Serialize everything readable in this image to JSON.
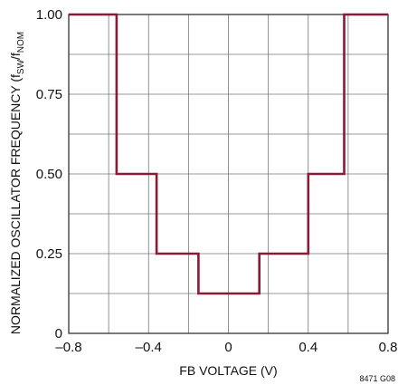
{
  "chart_data": {
    "type": "line",
    "title": "",
    "xlabel": "FB VOLTAGE (V)",
    "ylabel_main": "NORMALIZED OSCILLATOR FREQUENCY (f",
    "ylabel_sub1": "SW",
    "ylabel_mid": "/f",
    "ylabel_sub2": "NOM",
    "xlim": [
      -0.8,
      0.8
    ],
    "ylim": [
      0,
      1.0
    ],
    "grid": true,
    "x_ticks": [
      -0.8,
      -0.4,
      0,
      0.4,
      0.8
    ],
    "x_tick_labels": [
      "–0.8",
      "–0.4",
      "0",
      "0.4",
      "0.8"
    ],
    "y_ticks": [
      0,
      0.25,
      0.5,
      0.75,
      1.0
    ],
    "y_tick_labels": [
      "0",
      "0.25",
      "0.50",
      "0.75",
      "1.00"
    ],
    "x_grid": [
      -0.8,
      -0.6,
      -0.4,
      -0.2,
      0,
      0.2,
      0.4,
      0.6,
      0.8
    ],
    "y_grid": [
      0,
      0.125,
      0.25,
      0.375,
      0.5,
      0.625,
      0.75,
      0.875,
      1.0
    ],
    "line_color": "#8b1a35",
    "series": [
      {
        "points": [
          [
            -0.8,
            1.0
          ],
          [
            -0.56,
            1.0
          ],
          [
            -0.56,
            0.5
          ],
          [
            -0.36,
            0.5
          ],
          [
            -0.36,
            0.25
          ],
          [
            -0.15,
            0.25
          ],
          [
            -0.15,
            0.125
          ],
          [
            0.155,
            0.125
          ],
          [
            0.155,
            0.25
          ],
          [
            0.4,
            0.25
          ],
          [
            0.4,
            0.5
          ],
          [
            0.58,
            0.5
          ],
          [
            0.58,
            1.0
          ],
          [
            0.8,
            1.0
          ]
        ]
      }
    ],
    "figure_code": "8471 G08"
  }
}
